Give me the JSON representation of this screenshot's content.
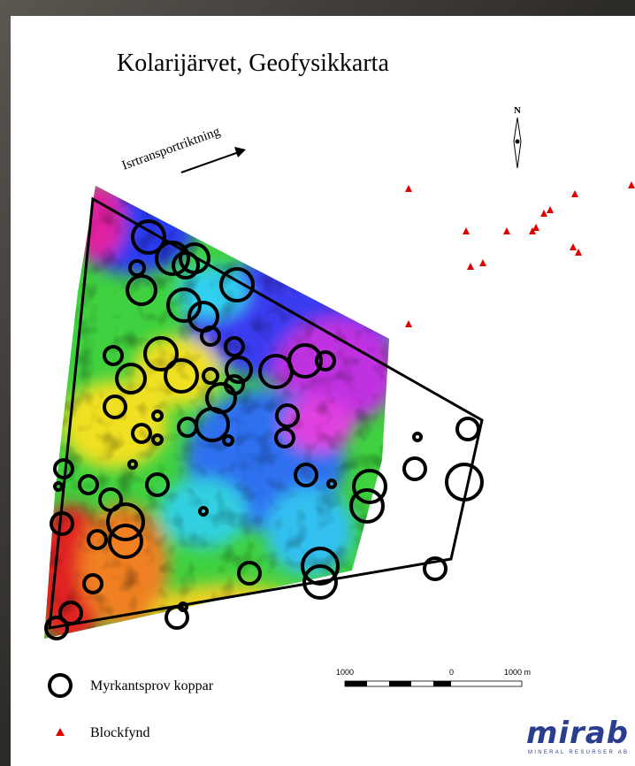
{
  "header": {
    "title": "Kolarijärvet, Geofysikkarta"
  },
  "map": {
    "direction_label": "Isrtransportriktning",
    "north": "N"
  },
  "legend": {
    "items": [
      "Myrkantsprov koppar",
      "Blockfynd"
    ]
  },
  "scale": {
    "labels": [
      "1000",
      "0",
      "1000 m"
    ]
  },
  "logo": {
    "name": "mirab",
    "subtitle": "MINERAL RESURSER AB"
  }
}
